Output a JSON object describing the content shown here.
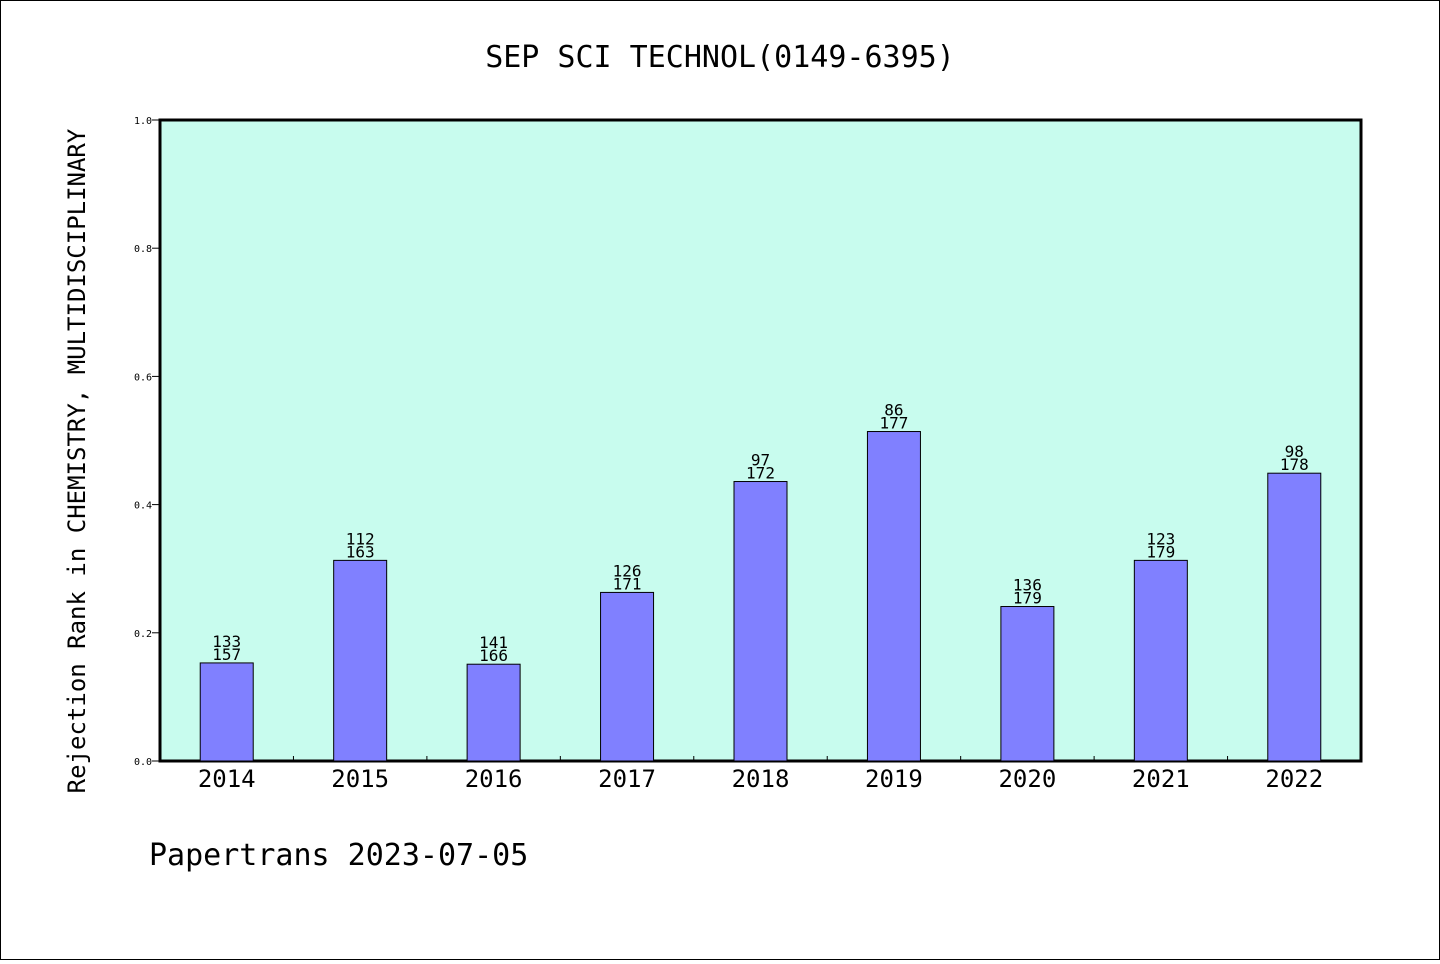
{
  "chart_data": {
    "type": "bar",
    "title": "SEP SCI TECHNOL(0149-6395)",
    "xlabel": "",
    "ylabel": "Rejection Rank in CHEMISTRY, MULTIDISCIPLINARY",
    "ylim": [
      0,
      1.0
    ],
    "yticks": [
      "0.0",
      "0.2",
      "0.4",
      "0.6",
      "0.8",
      "1.0"
    ],
    "categories": [
      "2014",
      "2015",
      "2016",
      "2017",
      "2018",
      "2019",
      "2020",
      "2021",
      "2022"
    ],
    "values": [
      0.153,
      0.313,
      0.151,
      0.263,
      0.436,
      0.514,
      0.241,
      0.313,
      0.449
    ],
    "labels": [
      {
        "rank": "133",
        "total": "157"
      },
      {
        "rank": "112",
        "total": "163"
      },
      {
        "rank": "141",
        "total": "166"
      },
      {
        "rank": "126",
        "total": "171"
      },
      {
        "rank": "97",
        "total": "172"
      },
      {
        "rank": "86",
        "total": "177"
      },
      {
        "rank": "136",
        "total": "179"
      },
      {
        "rank": "123",
        "total": "179"
      },
      {
        "rank": "98",
        "total": "178"
      }
    ],
    "grid": false,
    "legend": "none",
    "colors": {
      "plot_background": "#c8fcee",
      "bar_fill": "#8080ff",
      "bar_stroke": "#000000"
    }
  },
  "footer": "Papertrans 2023-07-05"
}
